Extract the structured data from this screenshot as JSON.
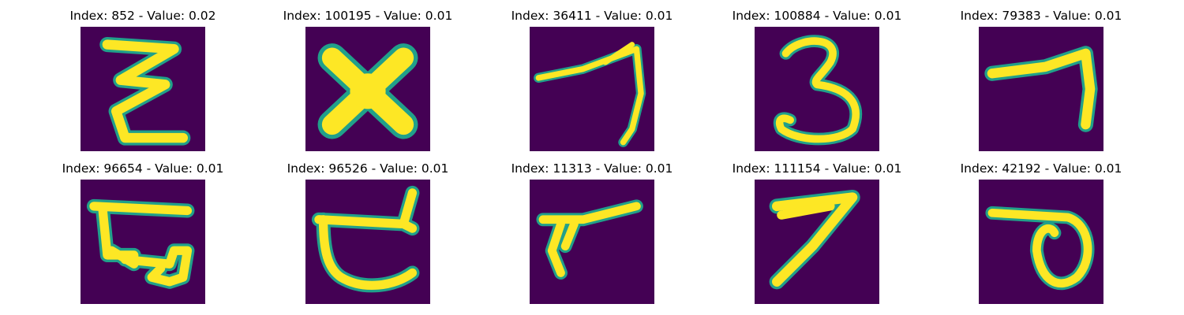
{
  "palette": {
    "background": "#440154",
    "stroke": "#fde725",
    "edge": "#21a08a"
  },
  "panels": [
    {
      "title": "Index: 852 - Value: 0.02",
      "glyph": "zigzag-z-icon"
    },
    {
      "title": "Index: 100195 - Value: 0.01",
      "glyph": "x-cross-icon"
    },
    {
      "title": "Index: 36411 - Value: 0.01",
      "glyph": "seven-like-icon"
    },
    {
      "title": "Index: 100884 - Value: 0.01",
      "glyph": "digit-three-icon"
    },
    {
      "title": "Index: 79383 - Value: 0.01",
      "glyph": "seven-like-icon"
    },
    {
      "title": "Index: 96654 - Value: 0.01",
      "glyph": "loop-glyph-icon"
    },
    {
      "title": "Index: 96526 - Value: 0.01",
      "glyph": "hook-glyph-icon"
    },
    {
      "title": "Index: 11313 - Value: 0.01",
      "glyph": "angle-glyph-icon"
    },
    {
      "title": "Index: 111154 - Value: 0.01",
      "glyph": "digit-seven-icon"
    },
    {
      "title": "Index: 42192 - Value: 0.01",
      "glyph": "loop-glyph-icon"
    }
  ]
}
